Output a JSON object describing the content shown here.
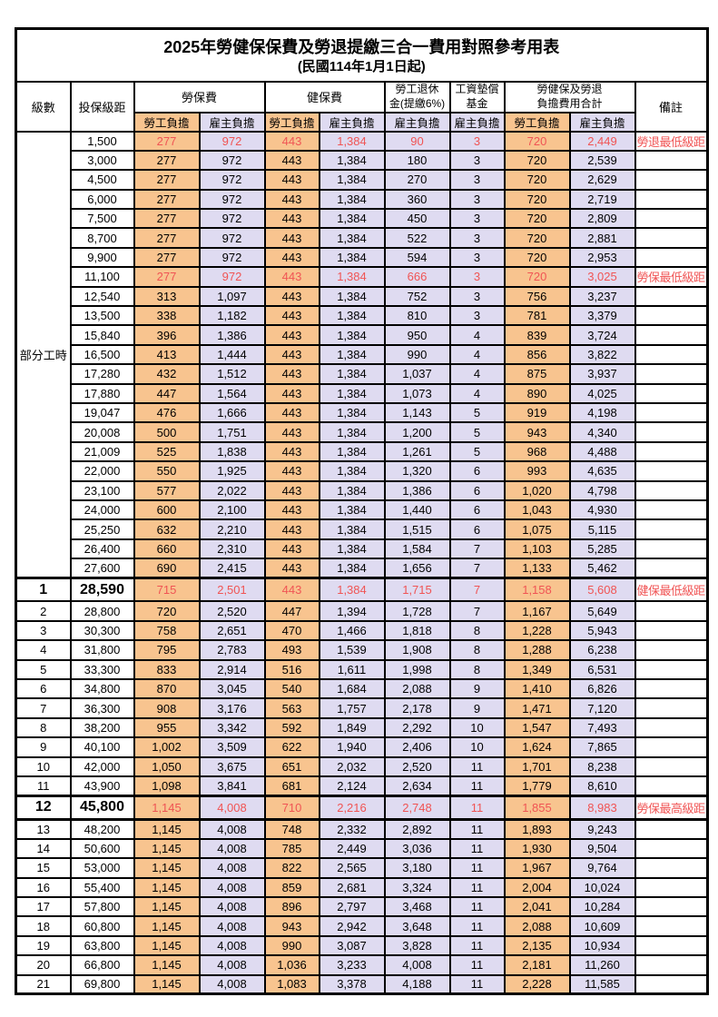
{
  "title": "2025年勞健保保費及勞退提繳三合一費用對照參考用表",
  "subtitle": "(民國114年1月1日起)",
  "header": {
    "level": "級數",
    "bracket": "投保級距",
    "labor_insurance": "勞保費",
    "health_insurance": "健保費",
    "pension_line1": "勞工退休",
    "pension_line2": "金(提繳6%)",
    "wage_fund_line1": "工資墊償",
    "wage_fund_line2": "基金",
    "total_line1": "勞健保及勞退",
    "total_line2": "負擔費用合計",
    "remark": "備註",
    "employee_share": "勞工負擔",
    "employer_share": "雇主負擔"
  },
  "part_time": {
    "label": "部分工時",
    "row_span": 23
  },
  "colors": {
    "employee_bg": "#F8C48F",
    "employer_bg": "#DFDBF1",
    "highlight_red": "#F05454",
    "border": "#000000"
  },
  "rows": [
    {
      "level": "",
      "bracket": "1,500",
      "cells": [
        "277",
        "972",
        "443",
        "1,384",
        "90",
        "3",
        "720",
        "2,449"
      ],
      "remark": "勞退最低級距",
      "highlight": true,
      "large": false
    },
    {
      "level": "",
      "bracket": "3,000",
      "cells": [
        "277",
        "972",
        "443",
        "1,384",
        "180",
        "3",
        "720",
        "2,539"
      ],
      "remark": "",
      "highlight": false,
      "large": false
    },
    {
      "level": "",
      "bracket": "4,500",
      "cells": [
        "277",
        "972",
        "443",
        "1,384",
        "270",
        "3",
        "720",
        "2,629"
      ],
      "remark": "",
      "highlight": false,
      "large": false
    },
    {
      "level": "",
      "bracket": "6,000",
      "cells": [
        "277",
        "972",
        "443",
        "1,384",
        "360",
        "3",
        "720",
        "2,719"
      ],
      "remark": "",
      "highlight": false,
      "large": false
    },
    {
      "level": "",
      "bracket": "7,500",
      "cells": [
        "277",
        "972",
        "443",
        "1,384",
        "450",
        "3",
        "720",
        "2,809"
      ],
      "remark": "",
      "highlight": false,
      "large": false
    },
    {
      "level": "",
      "bracket": "8,700",
      "cells": [
        "277",
        "972",
        "443",
        "1,384",
        "522",
        "3",
        "720",
        "2,881"
      ],
      "remark": "",
      "highlight": false,
      "large": false
    },
    {
      "level": "",
      "bracket": "9,900",
      "cells": [
        "277",
        "972",
        "443",
        "1,384",
        "594",
        "3",
        "720",
        "2,953"
      ],
      "remark": "",
      "highlight": false,
      "large": false
    },
    {
      "level": "",
      "bracket": "11,100",
      "cells": [
        "277",
        "972",
        "443",
        "1,384",
        "666",
        "3",
        "720",
        "3,025"
      ],
      "remark": "勞保最低級距",
      "highlight": true,
      "large": false
    },
    {
      "level": "",
      "bracket": "12,540",
      "cells": [
        "313",
        "1,097",
        "443",
        "1,384",
        "752",
        "3",
        "756",
        "3,237"
      ],
      "remark": "",
      "highlight": false,
      "large": false
    },
    {
      "level": "",
      "bracket": "13,500",
      "cells": [
        "338",
        "1,182",
        "443",
        "1,384",
        "810",
        "3",
        "781",
        "3,379"
      ],
      "remark": "",
      "highlight": false,
      "large": false
    },
    {
      "level": "",
      "bracket": "15,840",
      "cells": [
        "396",
        "1,386",
        "443",
        "1,384",
        "950",
        "4",
        "839",
        "3,724"
      ],
      "remark": "",
      "highlight": false,
      "large": false
    },
    {
      "level": "",
      "bracket": "16,500",
      "cells": [
        "413",
        "1,444",
        "443",
        "1,384",
        "990",
        "4",
        "856",
        "3,822"
      ],
      "remark": "",
      "highlight": false,
      "large": false
    },
    {
      "level": "",
      "bracket": "17,280",
      "cells": [
        "432",
        "1,512",
        "443",
        "1,384",
        "1,037",
        "4",
        "875",
        "3,937"
      ],
      "remark": "",
      "highlight": false,
      "large": false
    },
    {
      "level": "",
      "bracket": "17,880",
      "cells": [
        "447",
        "1,564",
        "443",
        "1,384",
        "1,073",
        "4",
        "890",
        "4,025"
      ],
      "remark": "",
      "highlight": false,
      "large": false
    },
    {
      "level": "",
      "bracket": "19,047",
      "cells": [
        "476",
        "1,666",
        "443",
        "1,384",
        "1,143",
        "5",
        "919",
        "4,198"
      ],
      "remark": "",
      "highlight": false,
      "large": false
    },
    {
      "level": "",
      "bracket": "20,008",
      "cells": [
        "500",
        "1,751",
        "443",
        "1,384",
        "1,200",
        "5",
        "943",
        "4,340"
      ],
      "remark": "",
      "highlight": false,
      "large": false
    },
    {
      "level": "",
      "bracket": "21,009",
      "cells": [
        "525",
        "1,838",
        "443",
        "1,384",
        "1,261",
        "5",
        "968",
        "4,488"
      ],
      "remark": "",
      "highlight": false,
      "large": false
    },
    {
      "level": "",
      "bracket": "22,000",
      "cells": [
        "550",
        "1,925",
        "443",
        "1,384",
        "1,320",
        "6",
        "993",
        "4,635"
      ],
      "remark": "",
      "highlight": false,
      "large": false
    },
    {
      "level": "",
      "bracket": "23,100",
      "cells": [
        "577",
        "2,022",
        "443",
        "1,384",
        "1,386",
        "6",
        "1,020",
        "4,798"
      ],
      "remark": "",
      "highlight": false,
      "large": false
    },
    {
      "level": "",
      "bracket": "24,000",
      "cells": [
        "600",
        "2,100",
        "443",
        "1,384",
        "1,440",
        "6",
        "1,043",
        "4,930"
      ],
      "remark": "",
      "highlight": false,
      "large": false
    },
    {
      "level": "",
      "bracket": "25,250",
      "cells": [
        "632",
        "2,210",
        "443",
        "1,384",
        "1,515",
        "6",
        "1,075",
        "5,115"
      ],
      "remark": "",
      "highlight": false,
      "large": false
    },
    {
      "level": "",
      "bracket": "26,400",
      "cells": [
        "660",
        "2,310",
        "443",
        "1,384",
        "1,584",
        "7",
        "1,103",
        "5,285"
      ],
      "remark": "",
      "highlight": false,
      "large": false
    },
    {
      "level": "",
      "bracket": "27,600",
      "cells": [
        "690",
        "2,415",
        "443",
        "1,384",
        "1,656",
        "7",
        "1,133",
        "5,462"
      ],
      "remark": "",
      "highlight": false,
      "large": false
    },
    {
      "level": "1",
      "bracket": "28,590",
      "cells": [
        "715",
        "2,501",
        "443",
        "1,384",
        "1,715",
        "7",
        "1,158",
        "5,608"
      ],
      "remark": "健保最低級距",
      "highlight": true,
      "large": true
    },
    {
      "level": "2",
      "bracket": "28,800",
      "cells": [
        "720",
        "2,520",
        "447",
        "1,394",
        "1,728",
        "7",
        "1,167",
        "5,649"
      ],
      "remark": "",
      "highlight": false,
      "large": false
    },
    {
      "level": "3",
      "bracket": "30,300",
      "cells": [
        "758",
        "2,651",
        "470",
        "1,466",
        "1,818",
        "8",
        "1,228",
        "5,943"
      ],
      "remark": "",
      "highlight": false,
      "large": false
    },
    {
      "level": "4",
      "bracket": "31,800",
      "cells": [
        "795",
        "2,783",
        "493",
        "1,539",
        "1,908",
        "8",
        "1,288",
        "6,238"
      ],
      "remark": "",
      "highlight": false,
      "large": false
    },
    {
      "level": "5",
      "bracket": "33,300",
      "cells": [
        "833",
        "2,914",
        "516",
        "1,611",
        "1,998",
        "8",
        "1,349",
        "6,531"
      ],
      "remark": "",
      "highlight": false,
      "large": false
    },
    {
      "level": "6",
      "bracket": "34,800",
      "cells": [
        "870",
        "3,045",
        "540",
        "1,684",
        "2,088",
        "9",
        "1,410",
        "6,826"
      ],
      "remark": "",
      "highlight": false,
      "large": false
    },
    {
      "level": "7",
      "bracket": "36,300",
      "cells": [
        "908",
        "3,176",
        "563",
        "1,757",
        "2,178",
        "9",
        "1,471",
        "7,120"
      ],
      "remark": "",
      "highlight": false,
      "large": false
    },
    {
      "level": "8",
      "bracket": "38,200",
      "cells": [
        "955",
        "3,342",
        "592",
        "1,849",
        "2,292",
        "10",
        "1,547",
        "7,493"
      ],
      "remark": "",
      "highlight": false,
      "large": false
    },
    {
      "level": "9",
      "bracket": "40,100",
      "cells": [
        "1,002",
        "3,509",
        "622",
        "1,940",
        "2,406",
        "10",
        "1,624",
        "7,865"
      ],
      "remark": "",
      "highlight": false,
      "large": false
    },
    {
      "level": "10",
      "bracket": "42,000",
      "cells": [
        "1,050",
        "3,675",
        "651",
        "2,032",
        "2,520",
        "11",
        "1,701",
        "8,238"
      ],
      "remark": "",
      "highlight": false,
      "large": false
    },
    {
      "level": "11",
      "bracket": "43,900",
      "cells": [
        "1,098",
        "3,841",
        "681",
        "2,124",
        "2,634",
        "11",
        "1,779",
        "8,610"
      ],
      "remark": "",
      "highlight": false,
      "large": false
    },
    {
      "level": "12",
      "bracket": "45,800",
      "cells": [
        "1,145",
        "4,008",
        "710",
        "2,216",
        "2,748",
        "11",
        "1,855",
        "8,983"
      ],
      "remark": "勞保最高級距",
      "highlight": true,
      "large": true
    },
    {
      "level": "13",
      "bracket": "48,200",
      "cells": [
        "1,145",
        "4,008",
        "748",
        "2,332",
        "2,892",
        "11",
        "1,893",
        "9,243"
      ],
      "remark": "",
      "highlight": false,
      "large": false
    },
    {
      "level": "14",
      "bracket": "50,600",
      "cells": [
        "1,145",
        "4,008",
        "785",
        "2,449",
        "3,036",
        "11",
        "1,930",
        "9,504"
      ],
      "remark": "",
      "highlight": false,
      "large": false
    },
    {
      "level": "15",
      "bracket": "53,000",
      "cells": [
        "1,145",
        "4,008",
        "822",
        "2,565",
        "3,180",
        "11",
        "1,967",
        "9,764"
      ],
      "remark": "",
      "highlight": false,
      "large": false
    },
    {
      "level": "16",
      "bracket": "55,400",
      "cells": [
        "1,145",
        "4,008",
        "859",
        "2,681",
        "3,324",
        "11",
        "2,004",
        "10,024"
      ],
      "remark": "",
      "highlight": false,
      "large": false
    },
    {
      "level": "17",
      "bracket": "57,800",
      "cells": [
        "1,145",
        "4,008",
        "896",
        "2,797",
        "3,468",
        "11",
        "2,041",
        "10,284"
      ],
      "remark": "",
      "highlight": false,
      "large": false
    },
    {
      "level": "18",
      "bracket": "60,800",
      "cells": [
        "1,145",
        "4,008",
        "943",
        "2,942",
        "3,648",
        "11",
        "2,088",
        "10,609"
      ],
      "remark": "",
      "highlight": false,
      "large": false
    },
    {
      "level": "19",
      "bracket": "63,800",
      "cells": [
        "1,145",
        "4,008",
        "990",
        "3,087",
        "3,828",
        "11",
        "2,135",
        "10,934"
      ],
      "remark": "",
      "highlight": false,
      "large": false
    },
    {
      "level": "20",
      "bracket": "66,800",
      "cells": [
        "1,145",
        "4,008",
        "1,036",
        "3,233",
        "4,008",
        "11",
        "2,181",
        "11,260"
      ],
      "remark": "",
      "highlight": false,
      "large": false
    },
    {
      "level": "21",
      "bracket": "69,800",
      "cells": [
        "1,145",
        "4,008",
        "1,083",
        "3,378",
        "4,188",
        "11",
        "2,228",
        "11,585"
      ],
      "remark": "",
      "highlight": false,
      "large": false
    }
  ]
}
